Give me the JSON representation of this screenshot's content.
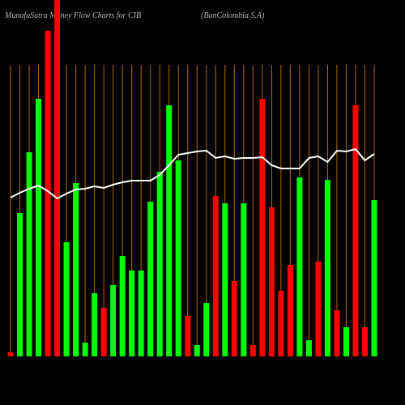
{
  "chart_data": {
    "type": "bar",
    "title": "MunafaSutra Money Flow Charts for CIB",
    "subtitle": "(BanColombia S.A)",
    "values": [
      5,
      177,
      252,
      318,
      402,
      440,
      141,
      214,
      17,
      78,
      60,
      88,
      124,
      106,
      106,
      191,
      228,
      310,
      242,
      50,
      14,
      66,
      198,
      189,
      93,
      189,
      14,
      318,
      184,
      81,
      113,
      221,
      20,
      117,
      218,
      57,
      36,
      310,
      36,
      193
    ],
    "colors": [
      "#ff0000",
      "#00ff00",
      "#00ff00",
      "#00ff00",
      "#ff0000",
      "#ff0000",
      "#00ff00",
      "#00ff00",
      "#00ff00",
      "#00ff00",
      "#ff0000",
      "#00ff00",
      "#00ff00",
      "#00ff00",
      "#00ff00",
      "#00ff00",
      "#00ff00",
      "#00ff00",
      "#00ff00",
      "#ff0000",
      "#00ff00",
      "#00ff00",
      "#ff0000",
      "#00ff00",
      "#ff0000",
      "#00ff00",
      "#ff0000",
      "#ff0000",
      "#ff0000",
      "#ff0000",
      "#ff0000",
      "#00ff00",
      "#00ff00",
      "#ff0000",
      "#00ff00",
      "#ff0000",
      "#00ff00",
      "#ff0000",
      "#ff0000",
      "#00ff00"
    ],
    "line": {
      "color": "#ffffff",
      "values": [
        196,
        202,
        207,
        211,
        204,
        195,
        201,
        206,
        207,
        210,
        208,
        212,
        215,
        217,
        217,
        217,
        224,
        236,
        249,
        251,
        253,
        254,
        245,
        247,
        244,
        245,
        245,
        246,
        236,
        232,
        232,
        232,
        245,
        247,
        240,
        254,
        253,
        256,
        242,
        250
      ]
    },
    "ylim": [
      0,
      440
    ],
    "grid_color": "#b8670a"
  }
}
